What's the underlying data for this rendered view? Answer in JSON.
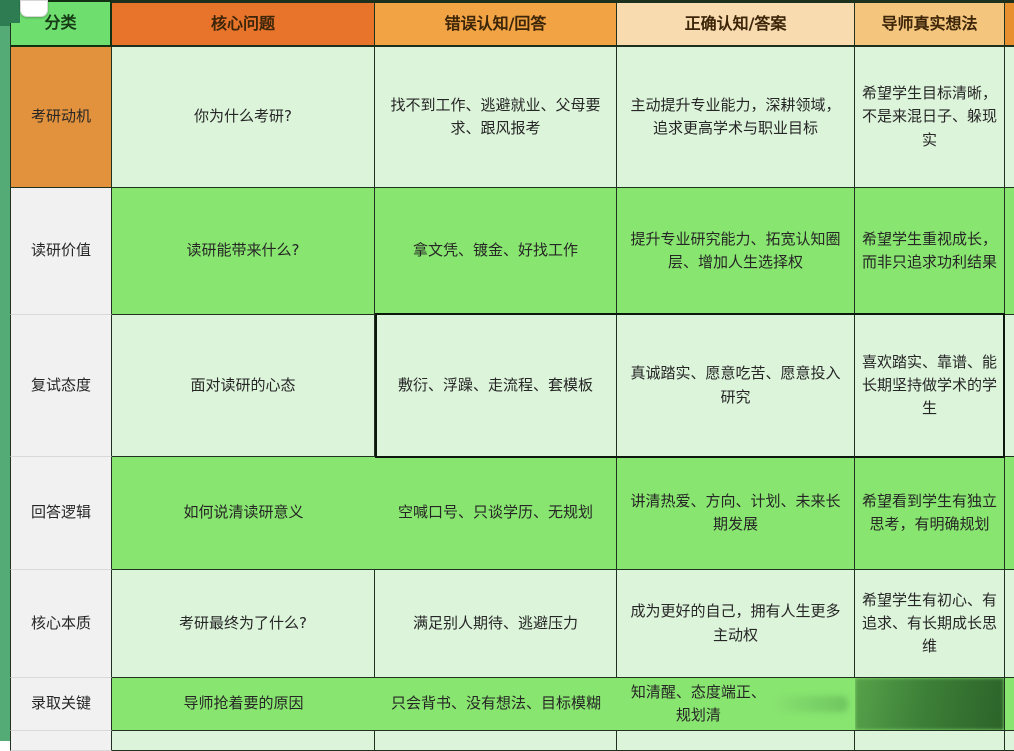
{
  "app": {
    "kind": "spreadsheet-table-view",
    "selection": {
      "handle_visible": true,
      "range_border_rows": "复试态度 row, columns 错误认知/回答 through 导师真实想法"
    }
  },
  "colors": {
    "pale_green_cell": "#dcf4da",
    "bright_green_cell": "#88e56f",
    "header_category_bg": "#6ede6e",
    "header_core_question_bg": "#e8742c",
    "header_wrong_bg": "#f2a444",
    "header_right_bg": "#f8dcb0",
    "header_mentor_bg": "#f3c57d",
    "header_extra_bg": "#e8902f",
    "category_row1_bg": "#e2913c",
    "category_gray_bg": "#f1f1f1",
    "sheet_edge_strip": "#55ab76",
    "blurred_block": "#3d8038"
  },
  "table": {
    "columns": [
      {
        "id": "category",
        "label": "分类"
      },
      {
        "id": "question",
        "label": "核心问题"
      },
      {
        "id": "wrong",
        "label": "错误认知/回答"
      },
      {
        "id": "right",
        "label": "正确认知/答案"
      },
      {
        "id": "mentor",
        "label": "导师真实想法"
      },
      {
        "id": "extra",
        "label": "",
        "note": "clipped partial column at right edge"
      }
    ],
    "rows": [
      {
        "category": "考研动机",
        "question": "你为什么考研?",
        "wrong": "找不到工作、逃避就业、父母要求、跟风报考",
        "right": "主动提升专业能力，深耕领域，追求更高学术与职业目标",
        "mentor": "希望学生目标清晰，不是来混日子、躲现实"
      },
      {
        "category": "读研价值",
        "question": "读研能带来什么?",
        "wrong": "拿文凭、镀金、好找工作",
        "right": "提升专业研究能力、拓宽认知圈层、增加人生选择权",
        "mentor": "希望学生重视成长，而非只追求功利结果"
      },
      {
        "category": "复试态度",
        "question": "面对读研的心态",
        "wrong": "敷衍、浮躁、走流程、套模板",
        "right": "真诚踏实、愿意吃苦、愿意投入研究",
        "mentor": "喜欢踏实、靠谱、能长期坚持做学术的学生"
      },
      {
        "category": "回答逻辑",
        "question": "如何说清读研意义",
        "wrong": "空喊口号、只谈学历、无规划",
        "right": "讲清热爱、方向、计划、未来长期发展",
        "mentor": "希望看到学生有独立思考，有明确规划"
      },
      {
        "category": "核心本质",
        "question": "考研最终为了什么?",
        "wrong": "满足别人期待、逃避压力",
        "right": "成为更好的自己，拥有人生更多主动权",
        "mentor": "希望学生有初心、有追求、有长期成长思维"
      },
      {
        "category": "录取关键",
        "question": "导师抢着要的原因",
        "wrong": "只会背书、没有想法、目标模糊",
        "right": "知清醒、态度端正、规划清",
        "mentor": "",
        "mentor_blurred": true
      }
    ]
  }
}
